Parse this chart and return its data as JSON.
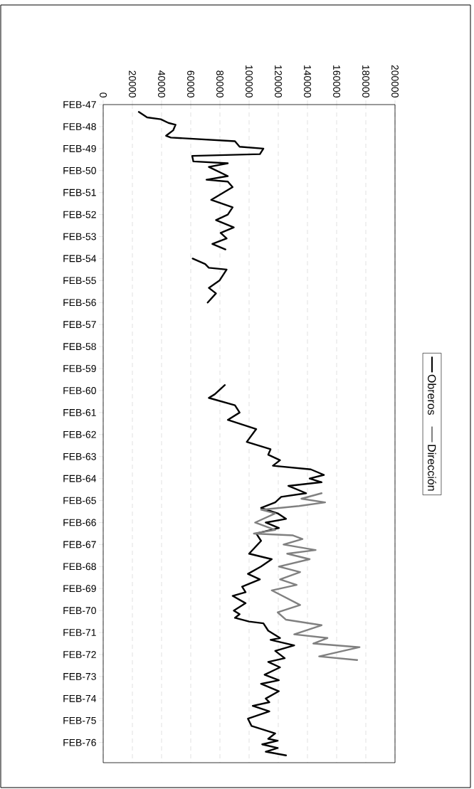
{
  "chart_data": {
    "type": "line",
    "orientation": "horizontal",
    "grid": "x",
    "legend": "right",
    "line_style": "solid",
    "ylim": [
      "1977-01",
      "1947-02"
    ],
    "yticks": [
      {
        "value": "1947-02",
        "label": "FEB-47"
      },
      {
        "value": "1948-02",
        "label": "FEB-48"
      },
      {
        "value": "1949-02",
        "label": "FEB-49"
      },
      {
        "value": "1950-02",
        "label": "FEB-50"
      },
      {
        "value": "1951-02",
        "label": "FEB-51"
      },
      {
        "value": "1952-02",
        "label": "FEB-52"
      },
      {
        "value": "1953-02",
        "label": "FEB-53"
      },
      {
        "value": "1954-02",
        "label": "FEB-54"
      },
      {
        "value": "1955-02",
        "label": "FEB-55"
      },
      {
        "value": "1956-02",
        "label": "FEB-56"
      },
      {
        "value": "1957-02",
        "label": "FEB-57"
      },
      {
        "value": "1958-02",
        "label": "FEB-58"
      },
      {
        "value": "1959-02",
        "label": "FEB-59"
      },
      {
        "value": "1960-02",
        "label": "FEB-60"
      },
      {
        "value": "1961-02",
        "label": "FEB-61"
      },
      {
        "value": "1962-02",
        "label": "FEB-62"
      },
      {
        "value": "1963-02",
        "label": "FEB-63"
      },
      {
        "value": "1964-02",
        "label": "FEB-64"
      },
      {
        "value": "1965-02",
        "label": "FEB-65"
      },
      {
        "value": "1966-02",
        "label": "FEB-66"
      },
      {
        "value": "1967-02",
        "label": "FEB-67"
      },
      {
        "value": "1968-02",
        "label": "FEB-68"
      },
      {
        "value": "1969-02",
        "label": "FEB-69"
      },
      {
        "value": "1970-02",
        "label": "FEB-70"
      },
      {
        "value": "1971-02",
        "label": "FEB-71"
      },
      {
        "value": "1972-02",
        "label": "FEB-72"
      },
      {
        "value": "1973-02",
        "label": "FEB-73"
      },
      {
        "value": "1974-02",
        "label": "FEB-74"
      },
      {
        "value": "1975-02",
        "label": "FEB-75"
      },
      {
        "value": "1976-02",
        "label": "FEB-76"
      }
    ],
    "xlim": [
      0,
      200000
    ],
    "xticks": [
      0,
      20000,
      40000,
      60000,
      80000,
      100000,
      120000,
      140000,
      160000,
      180000,
      200000
    ],
    "series": [
      {
        "name": "Obreros",
        "color": "#000000",
        "x": [
          "1947-06",
          "1947-09",
          "1947-10",
          "1947-12",
          "1948-01",
          "1948-04",
          "1948-07",
          "1948-08",
          "1948-10",
          "1949-01",
          "1949-02",
          "1949-05",
          "1949-06",
          "1949-09",
          "1949-10",
          "1949-12",
          "1950-05",
          "1950-07",
          "1950-08",
          "1950-11",
          "1951-06",
          "1951-10",
          "1952-02",
          "1952-05",
          "1952-09",
          "1952-12",
          "1953-03",
          "1953-06",
          "1953-09",
          "1953-12",
          "1954-02",
          "1954-05",
          "1954-07",
          "1954-08",
          "1955-02",
          "1955-06",
          "1955-09",
          "1956-02",
          "1957-06",
          "1959-11",
          "1960-04",
          "1960-06",
          "1960-10",
          "1961-02",
          "1961-06",
          "1961-11",
          "1962-06",
          "1962-10",
          "1963-01",
          "1963-04",
          "1963-07",
          "1963-09",
          "1963-12",
          "1964-02",
          "1964-04",
          "1964-06",
          "1964-10",
          "1964-12",
          "1965-03",
          "1965-06",
          "1965-09",
          "1965-12",
          "1966-02",
          "1966-05",
          "1966-08",
          "1966-12",
          "1967-07",
          "1967-10",
          "1968-02",
          "1968-06",
          "1968-09",
          "1969-01",
          "1969-04",
          "1969-06",
          "1969-10",
          "1970-02",
          "1970-04",
          "1970-06",
          "1970-08",
          "1970-09",
          "1971-01",
          "1971-05",
          "1971-06",
          "1971-09",
          "1971-12",
          "1972-04",
          "1972-06",
          "1972-09",
          "1973-01",
          "1973-04",
          "1973-06",
          "1973-10",
          "1974-02",
          "1974-04",
          "1974-06",
          "1974-09",
          "1975-01",
          "1975-05",
          "1975-09",
          "1975-12",
          "1976-01",
          "1976-03",
          "1976-05",
          "1976-07",
          "1976-09"
        ],
        "values": [
          24400,
          30100,
          39500,
          44700,
          49600,
          48000,
          43100,
          46400,
          90300,
          93500,
          109800,
          107400,
          61000,
          61800,
          85400,
          72400,
          85400,
          70800,
          85400,
          88700,
          74000,
          88700,
          85400,
          77300,
          89500,
          80500,
          84600,
          74800,
          83800,
          null,
          61300,
          69900,
          72400,
          84600,
          79700,
          72400,
          77300,
          71600,
          null,
          83400,
          76500,
          72400,
          90300,
          93500,
          85400,
          104900,
          98400,
          114700,
          113100,
          121200,
          116300,
          142300,
          151300,
          141500,
          149700,
          126900,
          139100,
          122000,
          117900,
          108200,
          119600,
          125300,
          111400,
          120400,
          104900,
          108200,
          100000,
          115500,
          108200,
          99200,
          107400,
          95200,
          97600,
          88700,
          97600,
          89500,
          93500,
          90300,
          100000,
          109800,
          113100,
          121200,
          114700,
          130900,
          117900,
          124400,
          113100,
          121200,
          110600,
          120400,
          108200,
          120400,
          111400,
          113900,
          102500,
          113900,
          99200,
          101700,
          117900,
          113100,
          119600,
          109000,
          119600,
          111400,
          125300
        ]
      },
      {
        "name": "Dirección",
        "color": "#808080",
        "x": [
          "1964-10",
          "1965-01",
          "1965-03",
          "1965-05",
          "1965-07",
          "1965-09",
          "1966-02",
          "1966-06",
          "1966-08",
          "1966-09",
          "1966-11",
          "1967-02",
          "1967-05",
          "1967-07",
          "1967-10",
          "1968-02",
          "1968-05",
          "1968-09",
          "1968-12",
          "1969-03",
          "1969-11",
          "1970-03",
          "1970-07",
          "1970-10",
          "1971-03",
          "1971-05",
          "1971-08",
          "1971-10",
          "1972-03",
          "1972-05"
        ],
        "values": [
          149700,
          135800,
          152100,
          134200,
          108200,
          117900,
          104100,
          117900,
          103300,
          130100,
          136600,
          123600,
          145600,
          126100,
          141500,
          120400,
          135000,
          121200,
          132600,
          115500,
          135000,
          119600,
          125300,
          149700,
          130900,
          153700,
          144000,
          175700,
          148000,
          174100
        ]
      }
    ]
  }
}
